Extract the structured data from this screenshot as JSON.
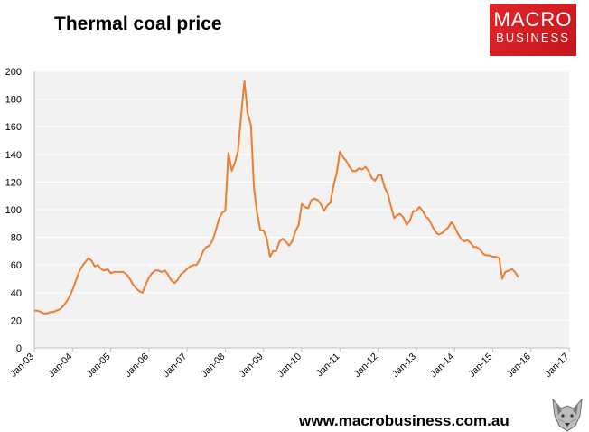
{
  "title": "Thermal coal price",
  "logo": {
    "line1": "MACRO",
    "line2": "BUSINESS"
  },
  "footer": "www.macrobusiness.com.au",
  "chart_data": {
    "type": "line",
    "title": "Thermal coal price",
    "xlabel": "",
    "ylabel": "",
    "ylim": [
      0,
      200
    ],
    "yticks": [
      0,
      20,
      40,
      60,
      80,
      100,
      120,
      140,
      160,
      180,
      200
    ],
    "xlim": [
      2003,
      2017
    ],
    "xticks": [
      {
        "x": 2003,
        "label": "Jan-03"
      },
      {
        "x": 2004,
        "label": "Jan-04"
      },
      {
        "x": 2005,
        "label": "Jan-05"
      },
      {
        "x": 2006,
        "label": "Jan-06"
      },
      {
        "x": 2007,
        "label": "Jan-07"
      },
      {
        "x": 2008,
        "label": "Jan-08"
      },
      {
        "x": 2009,
        "label": "Jan-09"
      },
      {
        "x": 2010,
        "label": "Jan-10"
      },
      {
        "x": 2011,
        "label": "Jan-11"
      },
      {
        "x": 2012,
        "label": "Jan-12"
      },
      {
        "x": 2013,
        "label": "Jan-13"
      },
      {
        "x": 2014,
        "label": "Jan-14"
      },
      {
        "x": 2015,
        "label": "Jan-15"
      },
      {
        "x": 2016,
        "label": "Jan-16"
      },
      {
        "x": 2017,
        "label": "Jan-17"
      }
    ],
    "grid": "horizontal",
    "plot_background": "#f2f2f2",
    "grid_color": "#ffffff",
    "series": [
      {
        "color": "#ed7d31",
        "x": [
          2003.0,
          2003.08,
          2003.17,
          2003.25,
          2003.33,
          2003.42,
          2003.5,
          2003.58,
          2003.67,
          2003.75,
          2003.83,
          2003.92,
          2004.0,
          2004.08,
          2004.17,
          2004.25,
          2004.33,
          2004.42,
          2004.5,
          2004.58,
          2004.67,
          2004.75,
          2004.83,
          2004.92,
          2005.0,
          2005.08,
          2005.17,
          2005.25,
          2005.33,
          2005.42,
          2005.5,
          2005.58,
          2005.67,
          2005.75,
          2005.83,
          2005.92,
          2006.0,
          2006.08,
          2006.17,
          2006.25,
          2006.33,
          2006.42,
          2006.5,
          2006.58,
          2006.67,
          2006.75,
          2006.83,
          2006.92,
          2007.0,
          2007.08,
          2007.17,
          2007.25,
          2007.33,
          2007.42,
          2007.5,
          2007.58,
          2007.67,
          2007.75,
          2007.83,
          2007.92,
          2008.0,
          2008.08,
          2008.17,
          2008.25,
          2008.33,
          2008.42,
          2008.5,
          2008.58,
          2008.67,
          2008.75,
          2008.83,
          2008.92,
          2009.0,
          2009.08,
          2009.17,
          2009.25,
          2009.33,
          2009.42,
          2009.5,
          2009.58,
          2009.67,
          2009.75,
          2009.83,
          2009.92,
          2010.0,
          2010.08,
          2010.17,
          2010.25,
          2010.33,
          2010.42,
          2010.5,
          2010.58,
          2010.67,
          2010.75,
          2010.83,
          2010.92,
          2011.0,
          2011.08,
          2011.17,
          2011.25,
          2011.33,
          2011.42,
          2011.5,
          2011.58,
          2011.67,
          2011.75,
          2011.83,
          2011.92,
          2012.0,
          2012.08,
          2012.17,
          2012.25,
          2012.33,
          2012.42,
          2012.5,
          2012.58,
          2012.67,
          2012.75,
          2012.83,
          2012.92,
          2013.0,
          2013.08,
          2013.17,
          2013.25,
          2013.33,
          2013.42,
          2013.5,
          2013.58,
          2013.67,
          2013.75,
          2013.83,
          2013.92,
          2014.0,
          2014.08,
          2014.17,
          2014.25,
          2014.33,
          2014.42,
          2014.5,
          2014.58,
          2014.67,
          2014.75,
          2014.83,
          2014.92,
          2015.0,
          2015.08,
          2015.17,
          2015.25,
          2015.33,
          2015.42,
          2015.5,
          2015.58,
          2015.67
        ],
        "y": [
          27,
          27,
          26,
          25,
          25,
          26,
          26,
          27,
          28,
          30,
          33,
          37,
          42,
          48,
          55,
          59,
          62,
          65,
          63,
          59,
          60,
          57,
          56,
          57,
          54,
          55,
          55,
          55,
          55,
          53,
          50,
          46,
          43,
          41,
          40,
          46,
          51,
          54,
          56,
          56,
          55,
          56,
          53,
          49,
          47,
          49,
          53,
          55,
          57,
          59,
          60,
          60,
          64,
          70,
          73,
          74,
          78,
          85,
          93,
          98,
          99,
          141,
          128,
          134,
          142,
          170,
          193,
          170,
          161,
          116,
          98,
          85,
          85,
          80,
          66,
          70,
          70,
          77,
          79,
          77,
          74,
          77,
          84,
          89,
          104,
          102,
          101,
          107,
          108,
          107,
          104,
          99,
          103,
          105,
          117,
          127,
          142,
          138,
          135,
          131,
          128,
          128,
          130,
          129,
          131,
          128,
          123,
          121,
          125,
          125,
          116,
          112,
          103,
          94,
          96,
          97,
          94,
          89,
          92,
          99,
          99,
          102,
          99,
          95,
          93,
          88,
          84,
          82,
          83,
          85,
          87,
          91,
          88,
          83,
          79,
          77,
          78,
          76,
          73,
          73,
          71,
          68,
          67,
          67,
          66,
          66,
          65,
          50,
          55,
          56,
          57,
          55,
          51
        ]
      }
    ]
  }
}
